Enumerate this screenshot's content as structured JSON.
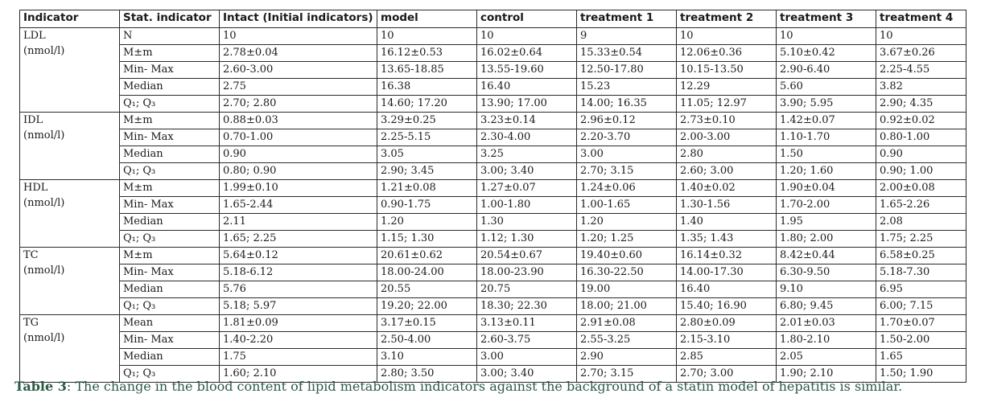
{
  "table": {
    "headers": [
      "Indicator",
      "Stat. indicator",
      "Intact (Initial indicators)",
      "model",
      "control",
      "treatment 1",
      "treatment 2",
      "treatment 3",
      "treatment 4"
    ],
    "groups": [
      {
        "indicator": "LDL\n(nmol/l)",
        "rows": [
          [
            "N",
            "10",
            "10",
            "10",
            "9",
            "10",
            "10",
            "10"
          ],
          [
            "M±m",
            "2.78±0.04",
            "16.12±0.53",
            "16.02±0.64",
            "15.33±0.54",
            "12.06±0.36",
            "5.10±0.42",
            "3.67±0.26"
          ],
          [
            "Min- Max",
            "2.60-3.00",
            "13.65-18.85",
            "13.55-19.60",
            "12.50-17.80",
            "10.15-13.50",
            "2.90-6.40",
            "2.25-4.55"
          ],
          [
            "Median",
            "2.75",
            "16.38",
            "16.40",
            "15.23",
            "12.29",
            "5.60",
            "3.82"
          ],
          [
            "Q₁; Q₃",
            "2.70; 2.80",
            "14.60; 17.20",
            "13.90; 17.00",
            "14.00; 16.35",
            "11.05; 12.97",
            "3.90; 5.95",
            "2.90; 4.35"
          ]
        ]
      },
      {
        "indicator": "IDL\n(nmol/l)",
        "rows": [
          [
            "M±m",
            "0.88±0.03",
            "3.29±0.25",
            "3.23±0.14",
            "2.96±0.12",
            "2.73±0.10",
            "1.42±0.07",
            "0.92±0.02"
          ],
          [
            "Min- Max",
            "0.70-1.00",
            "2.25-5.15",
            "2.30-4.00",
            "2.20-3.70",
            "2.00-3.00",
            "1.10-1.70",
            "0.80-1.00"
          ],
          [
            "Median",
            "0.90",
            "3.05",
            "3.25",
            "3.00",
            "2.80",
            "1.50",
            "0.90"
          ],
          [
            "Q₁; Q₃",
            "0.80; 0.90",
            "2.90; 3.45",
            "3.00; 3.40",
            "2.70; 3.15",
            "2.60; 3.00",
            "1.20; 1.60",
            "0.90; 1.00"
          ]
        ]
      },
      {
        "indicator": "HDL\n(nmol/l)",
        "rows": [
          [
            "M±m",
            "1.99±0.10",
            "1.21±0.08",
            "1.27±0.07",
            "1.24±0.06",
            "1.40±0.02",
            "1.90±0.04",
            "2.00±0.08"
          ],
          [
            "Min- Max",
            "1.65-2.44",
            "0.90-1.75",
            "1.00-1.80",
            "1.00-1.65",
            "1.30-1.56",
            "1.70-2.00",
            "1.65-2.26"
          ],
          [
            "Median",
            "2.11",
            "1.20",
            "1.30",
            "1.20",
            "1.40",
            "1.95",
            "2.08"
          ],
          [
            "Q₁; Q₃",
            "1.65; 2.25",
            "1.15; 1.30",
            "1.12; 1.30",
            "1.20; 1.25",
            "1.35; 1.43",
            "1.80; 2.00",
            "1.75; 2.25"
          ]
        ]
      },
      {
        "indicator": "TC\n(nmol/l)",
        "rows": [
          [
            "M±m",
            "5.64±0.12",
            "20.61±0.62",
            "20.54±0.67",
            "19.40±0.60",
            "16.14±0.32",
            "8.42±0.44",
            "6.58±0.25"
          ],
          [
            "Min- Max",
            "5.18-6.12",
            "18.00-24.00",
            "18.00-23.90",
            "16.30-22.50",
            "14.00-17.30",
            "6.30-9.50",
            "5.18-7.30"
          ],
          [
            "Median",
            "5.76",
            "20.55",
            "20.75",
            "19.00",
            "16.40",
            "9.10",
            "6.95"
          ],
          [
            "Q₁; Q₃",
            "5.18; 5.97",
            "19.20; 22.00",
            "18.30; 22.30",
            "18.00; 21.00",
            "15.40; 16.90",
            "6.80; 9.45",
            "6.00; 7.15"
          ]
        ]
      },
      {
        "indicator": "TG\n(nmol/l)",
        "rows": [
          [
            "Mean",
            "1.81±0.09",
            "3.17±0.15",
            "3.13±0.11",
            "2.91±0.08",
            "2.80±0.09",
            "2.01±0.03",
            "1.70±0.07"
          ],
          [
            "Min- Max",
            "1.40-2.20",
            "2.50-4.00",
            "2.60-3.75",
            "2.55-3.25",
            "2.15-3.10",
            "1.80-2.10",
            "1.50-2.00"
          ],
          [
            "Median",
            "1.75",
            "3.10",
            "3.00",
            "2.90",
            "2.85",
            "2.05",
            "1.65"
          ],
          [
            "Q₁; Q₃",
            "1.60; 2.10",
            "2.80; 3.50",
            "3.00; 3.40",
            "2.70; 3.15",
            "2.70; 3.00",
            "1.90; 2.10",
            "1.50; 1.90"
          ]
        ]
      }
    ]
  },
  "caption": {
    "label": "Table 3",
    "text": ": The change in the blood content of lipid metabolism indicators against the background of a statin model of hepatitis is similar."
  },
  "colors": {
    "caption": "#2c5a46",
    "border": "#2a2a2a",
    "text": "#1a1a1a"
  }
}
